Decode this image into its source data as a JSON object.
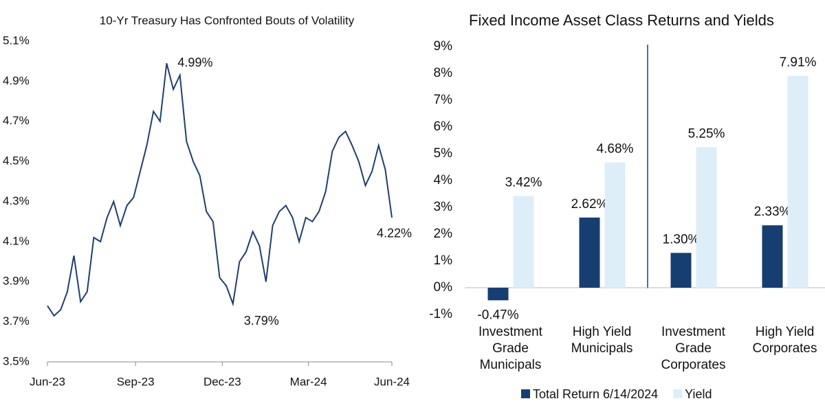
{
  "chart_data": [
    {
      "type": "line",
      "title": "10-Yr Treasury Has Confronted Bouts of Volatility",
      "series": [
        {
          "name": "10-Yr Treasury",
          "color": "#1f3d6e",
          "values": [
            3.78,
            3.73,
            3.76,
            3.85,
            4.03,
            3.8,
            3.85,
            4.12,
            4.1,
            4.22,
            4.3,
            4.18,
            4.28,
            4.32,
            4.45,
            4.58,
            4.75,
            4.7,
            4.99,
            4.86,
            4.93,
            4.6,
            4.5,
            4.43,
            4.25,
            4.2,
            3.92,
            3.88,
            3.79,
            4.0,
            4.05,
            4.15,
            4.08,
            3.9,
            4.18,
            4.25,
            4.28,
            4.22,
            4.1,
            4.22,
            4.2,
            4.25,
            4.35,
            4.55,
            4.62,
            4.65,
            4.58,
            4.5,
            4.38,
            4.45,
            4.58,
            4.46,
            4.22
          ],
          "value_labels": [
            null,
            null,
            null,
            null,
            null,
            null,
            null,
            null,
            null,
            null,
            null,
            null,
            null,
            null,
            null,
            null,
            null,
            null,
            "4.99%",
            null,
            null,
            null,
            null,
            null,
            null,
            null,
            null,
            null,
            "3.79%",
            null,
            null,
            null,
            null,
            null,
            null,
            null,
            null,
            null,
            null,
            null,
            null,
            null,
            null,
            null,
            null,
            null,
            null,
            null,
            null,
            null,
            null,
            null,
            "4.22%"
          ]
        }
      ],
      "xlim": [
        0,
        52
      ],
      "xticks": [
        {
          "value": 0,
          "label": "Jun-23"
        },
        {
          "value": 13.3,
          "label": "Sep-23"
        },
        {
          "value": 26.4,
          "label": "Dec-23"
        },
        {
          "value": 39.4,
          "label": "Mar-24"
        },
        {
          "value": 52,
          "label": "Jun-24"
        }
      ],
      "ylim": [
        3.5,
        5.1
      ],
      "yticks": [
        {
          "value": 3.5,
          "label": "3.5%"
        },
        {
          "value": 3.7,
          "label": "3.7%"
        },
        {
          "value": 3.9,
          "label": "3.9%"
        },
        {
          "value": 4.1,
          "label": "4.1%"
        },
        {
          "value": 4.3,
          "label": "4.3%"
        },
        {
          "value": 4.5,
          "label": "4.5%"
        },
        {
          "value": 4.7,
          "label": "4.7%"
        },
        {
          "value": 4.9,
          "label": "4.9%"
        },
        {
          "value": 5.1,
          "label": "5.1%"
        }
      ]
    },
    {
      "type": "bar",
      "title": "Fixed Income Asset Class Returns and Yields",
      "categories": [
        "Investment Grade Municipals",
        "High Yield Municipals",
        "Investment Grade Corporates",
        "High Yield Corporates"
      ],
      "series": [
        {
          "name": "Total Return 6/14/2024",
          "color": "#173e70",
          "values": [
            -0.47,
            2.62,
            1.3,
            2.33
          ],
          "value_labels": [
            "-0.47%",
            "2.62%",
            "1.30%",
            "2.33%"
          ]
        },
        {
          "name": "Yield",
          "color": "#ddeef9",
          "values": [
            3.42,
            4.68,
            5.25,
            7.91
          ],
          "value_labels": [
            "3.42%",
            "4.68%",
            "5.25%",
            "7.91%"
          ]
        }
      ],
      "ylim": [
        -1,
        9
      ],
      "yticks": [
        {
          "value": -1,
          "label": "-1%"
        },
        {
          "value": 0,
          "label": "0%"
        },
        {
          "value": 1,
          "label": "1%"
        },
        {
          "value": 2,
          "label": "2%"
        },
        {
          "value": 3,
          "label": "3%"
        },
        {
          "value": 4,
          "label": "4%"
        },
        {
          "value": 5,
          "label": "5%"
        },
        {
          "value": 6,
          "label": "6%"
        },
        {
          "value": 7,
          "label": "7%"
        },
        {
          "value": 8,
          "label": "8%"
        },
        {
          "value": 9,
          "label": "9%"
        }
      ],
      "legend": "bottom"
    }
  ]
}
